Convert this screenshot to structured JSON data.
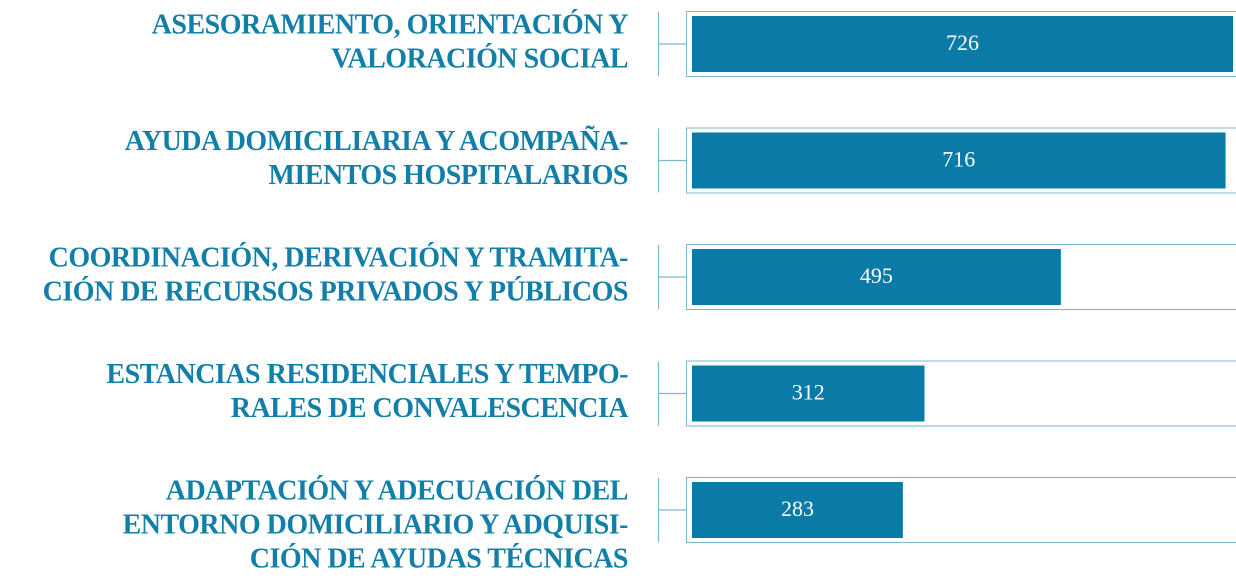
{
  "chart_data": {
    "type": "bar",
    "orientation": "horizontal",
    "categories": [
      [
        "ASESORAMIENTO, ORIENTACIÓN Y",
        "VALORACIÓN SOCIAL"
      ],
      [
        "AYUDA DOMICILIARIA Y ACOMPAÑA-",
        "MIENTOS HOSPITALARIOS"
      ],
      [
        "COORDINACIÓN, DERIVACIÓN Y TRAMITA-",
        "CIÓN DE RECURSOS PRIVADOS Y PÚBLICOS"
      ],
      [
        "ESTANCIAS RESIDENCIALES Y TEMPO-",
        "RALES DE CONVALESCENCIA"
      ],
      [
        "ADAPTACIÓN Y ADECUACIÓN DEL",
        "ENTORNO DOMICILIARIO Y ADQUISI-",
        "CIÓN DE AYUDAS TÉCNICAS"
      ]
    ],
    "values": [
      726,
      716,
      495,
      312,
      283
    ],
    "color": "#0a7ba6"
  }
}
